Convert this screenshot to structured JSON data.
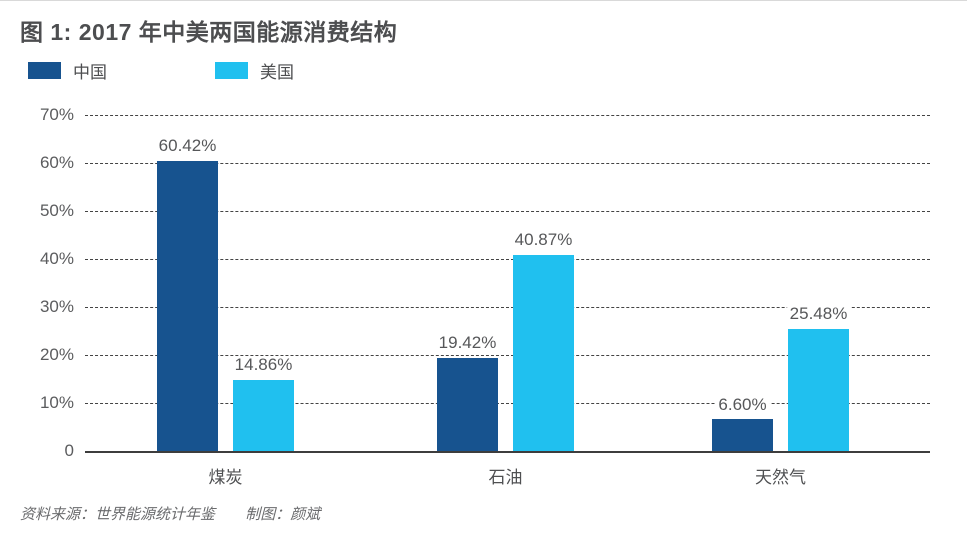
{
  "title": "图 1: 2017 年中美两国能源消费结构",
  "legend": [
    {
      "label": "中国",
      "color": "#17538f"
    },
    {
      "label": "美国",
      "color": "#20c0ef"
    }
  ],
  "footer": {
    "source": "资料来源：世界能源统计年鉴",
    "credit": "制图：颜斌"
  },
  "colors": {
    "china_bar": "#17538f",
    "usa_bar": "#20c0ef",
    "text": "#4d4e50",
    "gridline": "#434343"
  },
  "chart_data": {
    "type": "bar",
    "title": "图 1: 2017 年中美两国能源消费结构",
    "categories": [
      "煤炭",
      "石油",
      "天然气"
    ],
    "series": [
      {
        "name": "中国",
        "color": "#17538f",
        "values": [
          60.42,
          19.42,
          6.6
        ],
        "labels": [
          "60.42%",
          "19.42%",
          "6.60%"
        ]
      },
      {
        "name": "美国",
        "color": "#20c0ef",
        "values": [
          14.86,
          40.87,
          25.48
        ],
        "labels": [
          "14.86%",
          "40.87%",
          "25.48%"
        ]
      }
    ],
    "xlabel": "",
    "ylabel": "",
    "ylim": [
      0,
      70
    ],
    "yticks": [
      {
        "value": 70,
        "label": "70%"
      },
      {
        "value": 60,
        "label": "60%"
      },
      {
        "value": 50,
        "label": "50%"
      },
      {
        "value": 40,
        "label": "40%"
      },
      {
        "value": 30,
        "label": "30%"
      },
      {
        "value": 20,
        "label": "20%"
      },
      {
        "value": 10,
        "label": "10%"
      },
      {
        "value": 0,
        "label": "0"
      }
    ],
    "grid": "horizontal-dashed",
    "legend_position": "top-left"
  }
}
